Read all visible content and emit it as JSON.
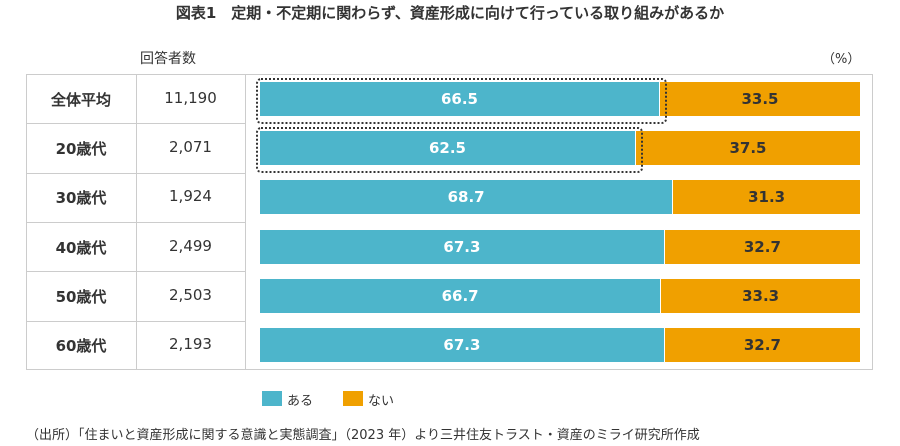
{
  "chart_data": {
    "type": "bar",
    "stacked": true,
    "orientation": "horizontal",
    "title": "図表1　定期・不定期に関わらず、資産形成に向けて行っている取り組みがあるか",
    "unit": "（%）",
    "count_header": "回答者数",
    "categories": [
      "全体平均",
      "20歳代",
      "30歳代",
      "40歳代",
      "50歳代",
      "60歳代"
    ],
    "counts": [
      "11,190",
      "2,071",
      "1,924",
      "2,499",
      "2,503",
      "2,193"
    ],
    "series": [
      {
        "name": "ある",
        "color": "#4db5cb",
        "values": [
          66.5,
          62.5,
          68.7,
          67.3,
          66.7,
          67.3
        ]
      },
      {
        "name": "ない",
        "color": "#f0a000",
        "values": [
          33.5,
          37.5,
          31.3,
          32.7,
          33.3,
          32.7
        ]
      }
    ],
    "highlighted_rows": [
      "全体平均",
      "20歳代"
    ],
    "xlim": [
      0,
      100
    ],
    "legend": "bottom",
    "source": "（出所）「住まいと資産形成に関する意識と実態調査」（2023 年）より三井住友トラスト・資産のミライ研究所作成"
  }
}
